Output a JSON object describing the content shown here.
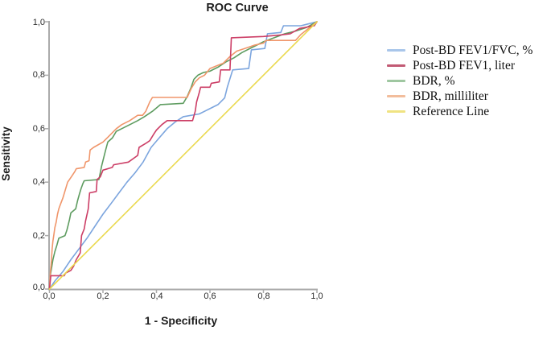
{
  "chart_data": {
    "type": "line",
    "title": "ROC Curve",
    "xlabel": "1 - Specificity",
    "ylabel": "Sensitivity",
    "xlim": [
      0,
      1
    ],
    "ylim": [
      0,
      1
    ],
    "x_tick_labels": [
      "0,0",
      "0,2",
      "0,4",
      "0,6",
      "0,8",
      "1,0"
    ],
    "y_tick_labels": [
      "0,0",
      "0,2",
      "0,4",
      "0,6",
      "0,8",
      "1,0"
    ],
    "grid": false,
    "legend_position": "right",
    "axis_color": "#ababab",
    "series": [
      {
        "name": "Post-BD FEV1/FVC, %",
        "color": "#7ca5de",
        "legend_color": "#a9c6ea",
        "points": [
          [
            0,
            0
          ],
          [
            0.02,
            0.03
          ],
          [
            0.05,
            0.065
          ],
          [
            0.08,
            0.11
          ],
          [
            0.11,
            0.15
          ],
          [
            0.14,
            0.19
          ],
          [
            0.17,
            0.235
          ],
          [
            0.2,
            0.28
          ],
          [
            0.23,
            0.32
          ],
          [
            0.26,
            0.36
          ],
          [
            0.29,
            0.4
          ],
          [
            0.32,
            0.435
          ],
          [
            0.35,
            0.475
          ],
          [
            0.38,
            0.53
          ],
          [
            0.41,
            0.565
          ],
          [
            0.44,
            0.6
          ],
          [
            0.47,
            0.625
          ],
          [
            0.5,
            0.645
          ],
          [
            0.56,
            0.655
          ],
          [
            0.6,
            0.675
          ],
          [
            0.63,
            0.69
          ],
          [
            0.655,
            0.715
          ],
          [
            0.665,
            0.755
          ],
          [
            0.685,
            0.82
          ],
          [
            0.745,
            0.825
          ],
          [
            0.755,
            0.895
          ],
          [
            0.805,
            0.9
          ],
          [
            0.815,
            0.955
          ],
          [
            0.865,
            0.96
          ],
          [
            0.875,
            0.985
          ],
          [
            0.94,
            0.985
          ],
          [
            1,
            1
          ]
        ]
      },
      {
        "name": "Post-BD FEV1, liter",
        "color": "#cc3e66",
        "legend_color": "#c25a74",
        "points": [
          [
            0,
            0
          ],
          [
            0.005,
            0.05
          ],
          [
            0.055,
            0.05
          ],
          [
            0.06,
            0.06
          ],
          [
            0.08,
            0.07
          ],
          [
            0.09,
            0.085
          ],
          [
            0.1,
            0.11
          ],
          [
            0.115,
            0.135
          ],
          [
            0.12,
            0.2
          ],
          [
            0.13,
            0.225
          ],
          [
            0.135,
            0.255
          ],
          [
            0.145,
            0.3
          ],
          [
            0.15,
            0.36
          ],
          [
            0.175,
            0.365
          ],
          [
            0.178,
            0.41
          ],
          [
            0.19,
            0.42
          ],
          [
            0.2,
            0.445
          ],
          [
            0.235,
            0.455
          ],
          [
            0.24,
            0.465
          ],
          [
            0.295,
            0.475
          ],
          [
            0.33,
            0.5
          ],
          [
            0.335,
            0.53
          ],
          [
            0.36,
            0.545
          ],
          [
            0.375,
            0.555
          ],
          [
            0.39,
            0.58
          ],
          [
            0.4,
            0.595
          ],
          [
            0.42,
            0.615
          ],
          [
            0.44,
            0.63
          ],
          [
            0.535,
            0.63
          ],
          [
            0.545,
            0.665
          ],
          [
            0.55,
            0.7
          ],
          [
            0.56,
            0.735
          ],
          [
            0.565,
            0.755
          ],
          [
            0.6,
            0.755
          ],
          [
            0.605,
            0.77
          ],
          [
            0.635,
            0.775
          ],
          [
            0.64,
            0.82
          ],
          [
            0.675,
            0.82
          ],
          [
            0.68,
            0.94
          ],
          [
            0.8,
            0.945
          ],
          [
            0.86,
            0.95
          ],
          [
            0.9,
            0.955
          ],
          [
            0.935,
            0.975
          ],
          [
            0.99,
            0.985
          ],
          [
            1,
            1
          ]
        ]
      },
      {
        "name": "BDR, %",
        "color": "#5e9c60",
        "legend_color": "#9fc7a1",
        "points": [
          [
            0,
            0
          ],
          [
            0.003,
            0.05
          ],
          [
            0.008,
            0.08
          ],
          [
            0.013,
            0.11
          ],
          [
            0.02,
            0.14
          ],
          [
            0.028,
            0.165
          ],
          [
            0.035,
            0.19
          ],
          [
            0.058,
            0.2
          ],
          [
            0.065,
            0.22
          ],
          [
            0.07,
            0.24
          ],
          [
            0.075,
            0.26
          ],
          [
            0.08,
            0.285
          ],
          [
            0.098,
            0.3
          ],
          [
            0.105,
            0.33
          ],
          [
            0.112,
            0.355
          ],
          [
            0.118,
            0.375
          ],
          [
            0.125,
            0.395
          ],
          [
            0.13,
            0.405
          ],
          [
            0.185,
            0.41
          ],
          [
            0.195,
            0.46
          ],
          [
            0.21,
            0.52
          ],
          [
            0.218,
            0.55
          ],
          [
            0.235,
            0.565
          ],
          [
            0.25,
            0.59
          ],
          [
            0.27,
            0.6
          ],
          [
            0.3,
            0.615
          ],
          [
            0.33,
            0.63
          ],
          [
            0.355,
            0.645
          ],
          [
            0.385,
            0.665
          ],
          [
            0.415,
            0.69
          ],
          [
            0.5,
            0.695
          ],
          [
            0.515,
            0.72
          ],
          [
            0.53,
            0.755
          ],
          [
            0.54,
            0.785
          ],
          [
            0.555,
            0.8
          ],
          [
            0.575,
            0.81
          ],
          [
            0.6,
            0.815
          ],
          [
            0.63,
            0.83
          ],
          [
            0.66,
            0.85
          ],
          [
            0.69,
            0.865
          ],
          [
            0.72,
            0.885
          ],
          [
            0.76,
            0.905
          ],
          [
            0.8,
            0.925
          ],
          [
            0.84,
            0.94
          ],
          [
            0.88,
            0.955
          ],
          [
            0.92,
            0.965
          ],
          [
            0.96,
            0.978
          ],
          [
            1,
            1
          ]
        ]
      },
      {
        "name": "BDR, milliliter",
        "color": "#f0966b",
        "legend_color": "#f2bd9c",
        "points": [
          [
            0,
            0
          ],
          [
            0.002,
            0.04
          ],
          [
            0.004,
            0.07
          ],
          [
            0.006,
            0.09
          ],
          [
            0.008,
            0.12
          ],
          [
            0.01,
            0.15
          ],
          [
            0.013,
            0.18
          ],
          [
            0.016,
            0.2
          ],
          [
            0.02,
            0.23
          ],
          [
            0.025,
            0.25
          ],
          [
            0.03,
            0.28
          ],
          [
            0.035,
            0.3
          ],
          [
            0.042,
            0.32
          ],
          [
            0.05,
            0.34
          ],
          [
            0.056,
            0.36
          ],
          [
            0.062,
            0.38
          ],
          [
            0.068,
            0.4
          ],
          [
            0.075,
            0.41
          ],
          [
            0.085,
            0.425
          ],
          [
            0.095,
            0.44
          ],
          [
            0.1,
            0.45
          ],
          [
            0.13,
            0.455
          ],
          [
            0.135,
            0.475
          ],
          [
            0.148,
            0.48
          ],
          [
            0.152,
            0.52
          ],
          [
            0.165,
            0.53
          ],
          [
            0.2,
            0.55
          ],
          [
            0.22,
            0.57
          ],
          [
            0.25,
            0.6
          ],
          [
            0.27,
            0.615
          ],
          [
            0.3,
            0.63
          ],
          [
            0.33,
            0.65
          ],
          [
            0.348,
            0.65
          ],
          [
            0.36,
            0.665
          ],
          [
            0.375,
            0.7
          ],
          [
            0.385,
            0.717
          ],
          [
            0.515,
            0.717
          ],
          [
            0.53,
            0.75
          ],
          [
            0.545,
            0.775
          ],
          [
            0.56,
            0.79
          ],
          [
            0.58,
            0.8
          ],
          [
            0.6,
            0.825
          ],
          [
            0.625,
            0.835
          ],
          [
            0.65,
            0.845
          ],
          [
            0.675,
            0.87
          ],
          [
            0.7,
            0.89
          ],
          [
            0.73,
            0.9
          ],
          [
            0.765,
            0.912
          ],
          [
            0.8,
            0.92
          ],
          [
            0.81,
            0.93
          ],
          [
            0.92,
            0.93
          ],
          [
            0.94,
            0.952
          ],
          [
            0.965,
            0.972
          ],
          [
            1,
            1
          ]
        ]
      },
      {
        "name": "Reference Line",
        "color": "#ead94f",
        "legend_color": "#f0e382",
        "points": [
          [
            0,
            0
          ],
          [
            1,
            1
          ]
        ]
      }
    ]
  }
}
